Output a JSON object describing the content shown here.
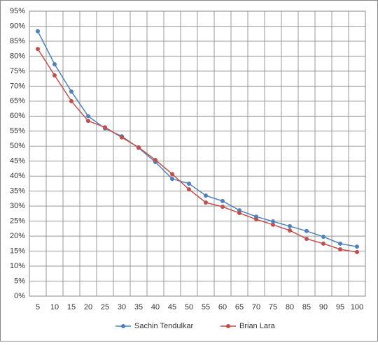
{
  "chart_data": {
    "type": "line",
    "categories": [
      "5",
      "10",
      "15",
      "20",
      "25",
      "30",
      "35",
      "40",
      "45",
      "50",
      "55",
      "60",
      "65",
      "70",
      "75",
      "80",
      "85",
      "90",
      "95",
      "100"
    ],
    "series": [
      {
        "name": "Sachin Tendulkar",
        "color": "#4f81bd",
        "values": [
          88.3,
          77.3,
          68.2,
          60,
          55.9,
          53.3,
          49.4,
          44.7,
          39.1,
          37.5,
          33.5,
          31.7,
          28.6,
          26.5,
          24.9,
          23.3,
          21.7,
          19.8,
          17.5,
          16.5
        ]
      },
      {
        "name": "Brian Lara",
        "color": "#c0504d",
        "values": [
          82.4,
          73.6,
          65,
          58.4,
          56.3,
          52.9,
          49.6,
          45.4,
          40.7,
          35.6,
          31.2,
          29.8,
          27.7,
          25.6,
          23.8,
          21.9,
          19.1,
          17.5,
          15.6,
          14.7
        ]
      }
    ],
    "ylim": [
      0,
      95
    ],
    "yticks": [
      {
        "value": 0,
        "label": "0%"
      },
      {
        "value": 5,
        "label": "5%"
      },
      {
        "value": 10,
        "label": "10%"
      },
      {
        "value": 15,
        "label": "15%"
      },
      {
        "value": 20,
        "label": "20%"
      },
      {
        "value": 25,
        "label": "25%"
      },
      {
        "value": 30,
        "label": "30%"
      },
      {
        "value": 35,
        "label": "35%"
      },
      {
        "value": 40,
        "label": "40%"
      },
      {
        "value": 45,
        "label": "45%"
      },
      {
        "value": 50,
        "label": "50%"
      },
      {
        "value": 55,
        "label": "55%"
      },
      {
        "value": 60,
        "label": "60%"
      },
      {
        "value": 65,
        "label": "65%"
      },
      {
        "value": 70,
        "label": "70%"
      },
      {
        "value": 75,
        "label": "75%"
      },
      {
        "value": 80,
        "label": "80%"
      },
      {
        "value": 85,
        "label": "85%"
      },
      {
        "value": 90,
        "label": "90%"
      },
      {
        "value": 95,
        "label": "95%"
      }
    ],
    "grid": true,
    "legend": "bottom"
  }
}
